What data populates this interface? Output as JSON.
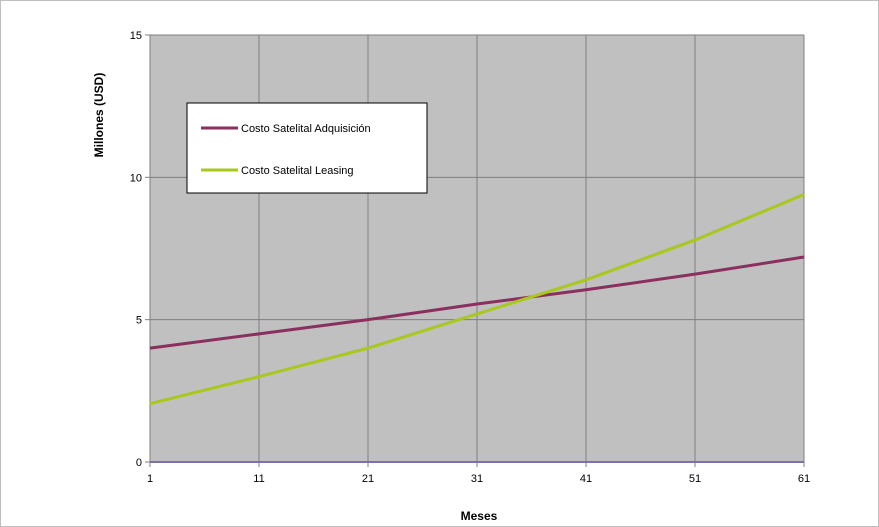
{
  "chart_data": {
    "type": "line",
    "xlabel": "Meses",
    "ylabel": "Millones (USD)",
    "xlim": [
      1,
      61
    ],
    "ylim": [
      0,
      15
    ],
    "x_ticks": [
      1,
      11,
      21,
      31,
      41,
      51,
      61
    ],
    "y_ticks": [
      0,
      5,
      10,
      15
    ],
    "grid": true,
    "legend_position": "top-left",
    "plot_background": "#c0c0c0",
    "series": [
      {
        "name": "Costo Satelital Adquisición",
        "color": "#8b2f5f",
        "x": [
          1,
          11,
          21,
          31,
          41,
          51,
          61
        ],
        "values": [
          4.0,
          4.5,
          5.0,
          5.55,
          6.05,
          6.6,
          7.2
        ]
      },
      {
        "name": "Costo Satelital Leasing",
        "color": "#a8c81e",
        "x": [
          1,
          11,
          21,
          31,
          41,
          51,
          61
        ],
        "values": [
          2.05,
          3.0,
          4.0,
          5.2,
          6.4,
          7.8,
          9.4
        ]
      }
    ]
  }
}
